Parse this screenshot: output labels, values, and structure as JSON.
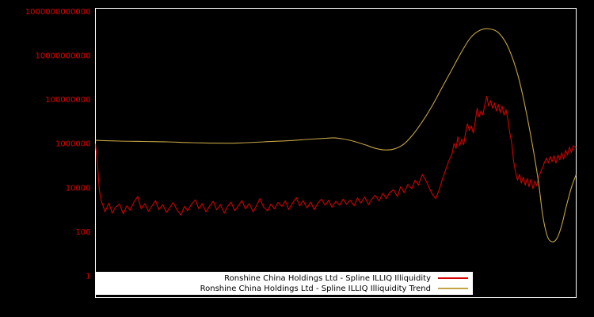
{
  "colors": {
    "background": "#000000",
    "plot_border": "#ffffff",
    "axis_label": "#e00000",
    "legend_background": "#ffffff",
    "legend_text": "#000000"
  },
  "chart_data": {
    "type": "line",
    "title": "",
    "xlabel": "",
    "ylabel": "",
    "y_scale": "log",
    "ylim": [
      1,
      1000000000000
    ],
    "grid": false,
    "legend_position": "bottom-center",
    "y_ticks": [
      {
        "label": "1000000000000",
        "value": 1000000000000
      },
      {
        "label": "10000000000",
        "value": 10000000000
      },
      {
        "label": "100000000",
        "value": 100000000
      },
      {
        "label": "1000000",
        "value": 1000000
      },
      {
        "label": "10000",
        "value": 10000
      },
      {
        "label": "100",
        "value": 100
      },
      {
        "label": "1",
        "value": 1
      }
    ],
    "series": [
      {
        "name": "Ronshine China Holdings Ltd - Spline ILLIQ Illiquidity",
        "color": "#d40000",
        "smooth": false,
        "points": [
          [
            0.0,
            1000000
          ],
          [
            0.004,
            150000
          ],
          [
            0.008,
            8000
          ],
          [
            0.012,
            2500
          ],
          [
            0.016,
            1500
          ],
          [
            0.02,
            800
          ],
          [
            0.028,
            2000
          ],
          [
            0.035,
            700
          ],
          [
            0.042,
            1300
          ],
          [
            0.05,
            1800
          ],
          [
            0.058,
            650
          ],
          [
            0.065,
            1500
          ],
          [
            0.072,
            950
          ],
          [
            0.08,
            2200
          ],
          [
            0.088,
            4000
          ],
          [
            0.095,
            1100
          ],
          [
            0.103,
            1900
          ],
          [
            0.11,
            850
          ],
          [
            0.118,
            1500
          ],
          [
            0.125,
            2600
          ],
          [
            0.132,
            1000
          ],
          [
            0.14,
            1700
          ],
          [
            0.148,
            750
          ],
          [
            0.155,
            1300
          ],
          [
            0.162,
            2100
          ],
          [
            0.17,
            950
          ],
          [
            0.178,
            560
          ],
          [
            0.185,
            1400
          ],
          [
            0.192,
            900
          ],
          [
            0.2,
            1800
          ],
          [
            0.208,
            2800
          ],
          [
            0.215,
            1100
          ],
          [
            0.222,
            1900
          ],
          [
            0.23,
            800
          ],
          [
            0.238,
            1500
          ],
          [
            0.245,
            2400
          ],
          [
            0.252,
            1000
          ],
          [
            0.26,
            1700
          ],
          [
            0.268,
            700
          ],
          [
            0.275,
            1400
          ],
          [
            0.282,
            2200
          ],
          [
            0.29,
            900
          ],
          [
            0.298,
            1600
          ],
          [
            0.305,
            2600
          ],
          [
            0.312,
            1100
          ],
          [
            0.32,
            1900
          ],
          [
            0.328,
            800
          ],
          [
            0.335,
            1500
          ],
          [
            0.342,
            3200
          ],
          [
            0.35,
            1300
          ],
          [
            0.358,
            900
          ],
          [
            0.365,
            1800
          ],
          [
            0.372,
            1100
          ],
          [
            0.38,
            2100
          ],
          [
            0.388,
            1400
          ],
          [
            0.395,
            2500
          ],
          [
            0.402,
            1000
          ],
          [
            0.41,
            2000
          ],
          [
            0.418,
            3500
          ],
          [
            0.425,
            1500
          ],
          [
            0.432,
            2600
          ],
          [
            0.44,
            1200
          ],
          [
            0.448,
            2200
          ],
          [
            0.455,
            1000
          ],
          [
            0.462,
            1900
          ],
          [
            0.47,
            3000
          ],
          [
            0.478,
            1600
          ],
          [
            0.485,
            2700
          ],
          [
            0.492,
            1300
          ],
          [
            0.5,
            2400
          ],
          [
            0.508,
            1600
          ],
          [
            0.515,
            3000
          ],
          [
            0.522,
            1800
          ],
          [
            0.53,
            2700
          ],
          [
            0.538,
            1500
          ],
          [
            0.545,
            3400
          ],
          [
            0.552,
            2000
          ],
          [
            0.56,
            3800
          ],
          [
            0.568,
            1700
          ],
          [
            0.575,
            3000
          ],
          [
            0.582,
            4500
          ],
          [
            0.59,
            2500
          ],
          [
            0.598,
            5600
          ],
          [
            0.605,
            3200
          ],
          [
            0.612,
            6000
          ],
          [
            0.62,
            8000
          ],
          [
            0.628,
            4000
          ],
          [
            0.635,
            11000
          ],
          [
            0.642,
            6000
          ],
          [
            0.65,
            14000
          ],
          [
            0.658,
            9000
          ],
          [
            0.665,
            22000
          ],
          [
            0.672,
            13000
          ],
          [
            0.68,
            40000
          ],
          [
            0.688,
            20000
          ],
          [
            0.695,
            9000
          ],
          [
            0.702,
            4500
          ],
          [
            0.708,
            3200
          ],
          [
            0.715,
            8000
          ],
          [
            0.722,
            25000
          ],
          [
            0.728,
            60000
          ],
          [
            0.735,
            160000
          ],
          [
            0.742,
            350000
          ],
          [
            0.746,
            1000000
          ],
          [
            0.75,
            600000
          ],
          [
            0.754,
            2000000
          ],
          [
            0.758,
            800000
          ],
          [
            0.762,
            1600000
          ],
          [
            0.766,
            900000
          ],
          [
            0.77,
            3200000
          ],
          [
            0.774,
            8000000
          ],
          [
            0.778,
            4000000
          ],
          [
            0.782,
            6300000
          ],
          [
            0.786,
            3000000
          ],
          [
            0.79,
            10000000
          ],
          [
            0.794,
            40000000
          ],
          [
            0.798,
            16000000
          ],
          [
            0.802,
            30000000
          ],
          [
            0.806,
            20000000
          ],
          [
            0.81,
            60000000
          ],
          [
            0.814,
            140000000
          ],
          [
            0.818,
            50000000
          ],
          [
            0.822,
            90000000
          ],
          [
            0.826,
            40000000
          ],
          [
            0.83,
            70000000
          ],
          [
            0.834,
            30000000
          ],
          [
            0.838,
            60000000
          ],
          [
            0.842,
            25000000
          ],
          [
            0.846,
            50000000
          ],
          [
            0.85,
            20000000
          ],
          [
            0.854,
            35000000
          ],
          [
            0.858,
            12000000
          ],
          [
            0.862,
            3000000
          ],
          [
            0.866,
            1000000
          ],
          [
            0.87,
            150000
          ],
          [
            0.874,
            50000
          ],
          [
            0.878,
            22000
          ],
          [
            0.882,
            40000
          ],
          [
            0.886,
            16000
          ],
          [
            0.89,
            30000
          ],
          [
            0.894,
            13000
          ],
          [
            0.898,
            26000
          ],
          [
            0.902,
            11000
          ],
          [
            0.906,
            24000
          ],
          [
            0.91,
            9000
          ],
          [
            0.914,
            20000
          ],
          [
            0.918,
            12000
          ],
          [
            0.922,
            32000
          ],
          [
            0.926,
            50000
          ],
          [
            0.93,
            80000
          ],
          [
            0.934,
            140000
          ],
          [
            0.938,
            220000
          ],
          [
            0.942,
            130000
          ],
          [
            0.946,
            260000
          ],
          [
            0.95,
            150000
          ],
          [
            0.954,
            280000
          ],
          [
            0.958,
            130000
          ],
          [
            0.962,
            300000
          ],
          [
            0.966,
            180000
          ],
          [
            0.97,
            380000
          ],
          [
            0.974,
            200000
          ],
          [
            0.978,
            500000
          ],
          [
            0.982,
            300000
          ],
          [
            0.986,
            700000
          ],
          [
            0.99,
            400000
          ],
          [
            0.994,
            800000
          ],
          [
            1.0,
            650000
          ]
        ]
      },
      {
        "name": "Ronshine China Holdings Ltd - Spline ILLIQ Illiquidity Trend",
        "color": "#c3a343",
        "smooth": true,
        "points": [
          [
            0.0,
            1400000
          ],
          [
            0.05,
            1300000
          ],
          [
            0.1,
            1250000
          ],
          [
            0.15,
            1200000
          ],
          [
            0.2,
            1100000
          ],
          [
            0.25,
            1050000
          ],
          [
            0.3,
            1070000
          ],
          [
            0.35,
            1200000
          ],
          [
            0.4,
            1350000
          ],
          [
            0.45,
            1600000
          ],
          [
            0.48,
            1750000
          ],
          [
            0.5,
            1800000
          ],
          [
            0.53,
            1400000
          ],
          [
            0.56,
            900000
          ],
          [
            0.58,
            630000
          ],
          [
            0.6,
            520000
          ],
          [
            0.62,
            560000
          ],
          [
            0.64,
            900000
          ],
          [
            0.66,
            2500000
          ],
          [
            0.68,
            10000000
          ],
          [
            0.7,
            50000000
          ],
          [
            0.72,
            320000000
          ],
          [
            0.74,
            2000000000
          ],
          [
            0.76,
            12600000000
          ],
          [
            0.78,
            63000000000
          ],
          [
            0.8,
            140000000000
          ],
          [
            0.82,
            160000000000
          ],
          [
            0.84,
            100000000000
          ],
          [
            0.86,
            20000000000
          ],
          [
            0.88,
            1000000000
          ],
          [
            0.9,
            10000000
          ],
          [
            0.92,
            32000
          ],
          [
            0.93,
            630
          ],
          [
            0.94,
            63
          ],
          [
            0.95,
            35
          ],
          [
            0.96,
            50
          ],
          [
            0.97,
            200
          ],
          [
            0.98,
            1600
          ],
          [
            0.99,
            10000
          ],
          [
            1.0,
            40000
          ]
        ]
      }
    ]
  },
  "legend": {
    "items": [
      {
        "label": "Ronshine China Holdings Ltd - Spline ILLIQ Illiquidity"
      },
      {
        "label": "Ronshine China Holdings Ltd - Spline ILLIQ Illiquidity Trend"
      }
    ]
  }
}
